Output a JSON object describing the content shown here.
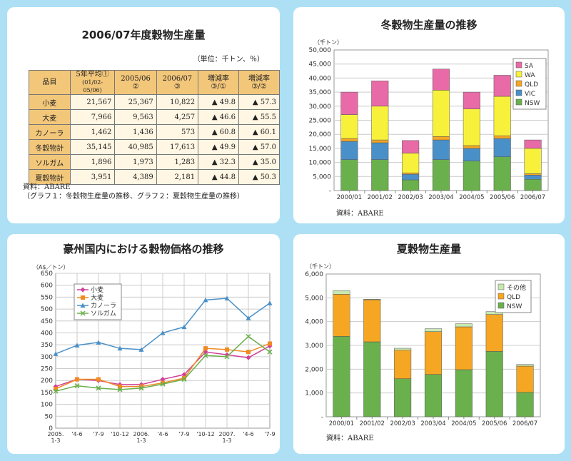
{
  "table_panel": {
    "title": "2006/07年度穀物生産量",
    "unit": "（単位：千トン、％）",
    "headers": [
      {
        "l1": "品目",
        "l2": ""
      },
      {
        "l1": "5年平均①",
        "l2": "(01/02-05/06)"
      },
      {
        "l1": "2005/06",
        "l2": "②"
      },
      {
        "l1": "2006/07",
        "l2": "③"
      },
      {
        "l1": "増減率",
        "l2": "③/①"
      },
      {
        "l1": "増減率",
        "l2": "③/②"
      }
    ],
    "rows": [
      {
        "name": "小麦",
        "avg": "21,567",
        "y0506": "25,367",
        "y0607": "10,822",
        "r1": "▲ 49.8",
        "r2": "▲ 57.3"
      },
      {
        "name": "大麦",
        "avg": "7,966",
        "y0506": "9,563",
        "y0607": "4,257",
        "r1": "▲ 46.6",
        "r2": "▲ 55.5"
      },
      {
        "name": "カノーラ",
        "avg": "1,462",
        "y0506": "1,436",
        "y0607": "573",
        "r1": "▲ 60.8",
        "r2": "▲ 60.1"
      },
      {
        "name": "冬穀物計",
        "avg": "35,145",
        "y0506": "40,985",
        "y0607": "17,613",
        "r1": "▲ 49.9",
        "r2": "▲ 57.0"
      },
      {
        "name": "ソルガム",
        "avg": "1,896",
        "y0506": "1,973",
        "y0607": "1,283",
        "r1": "▲ 32.3",
        "r2": "▲ 35.0"
      },
      {
        "name": "夏穀物計",
        "avg": "3,951",
        "y0506": "4,389",
        "y0607": "2,181",
        "r1": "▲ 44.8",
        "r2": "▲ 50.3"
      }
    ],
    "source": "資料：ABARE",
    "note": "（グラフ１：冬穀物生産量の推移、グラフ２：夏穀物生産量の推移）"
  },
  "chart_data": [
    {
      "type": "bar",
      "stacked": true,
      "title": "冬穀物生産量の推移",
      "ylabel": "（千トン）",
      "ylim": [
        0,
        50000
      ],
      "yticks": [
        "-",
        "5,000",
        "10,000",
        "15,000",
        "20,000",
        "25,000",
        "30,000",
        "35,000",
        "40,000",
        "45,000",
        "50,000"
      ],
      "categories": [
        "2000/01",
        "2001/02",
        "2002/03",
        "2003/04",
        "2004/05",
        "2005/06",
        "2006/07"
      ],
      "series": [
        {
          "name": "NSW",
          "color": "#6ab04c",
          "values": [
            11000,
            11000,
            3800,
            11000,
            10500,
            12000,
            4000
          ]
        },
        {
          "name": "VIC",
          "color": "#4a90c8",
          "values": [
            6500,
            6000,
            2000,
            7000,
            4500,
            6500,
            1500
          ]
        },
        {
          "name": "QLD",
          "color": "#f5a623",
          "values": [
            1000,
            1000,
            500,
            1200,
            1000,
            1000,
            500
          ]
        },
        {
          "name": "WA",
          "color": "#f7f13c",
          "values": [
            8500,
            12000,
            7000,
            16500,
            13000,
            14000,
            9000
          ]
        },
        {
          "name": "SA",
          "color": "#e86aa6",
          "values": [
            8000,
            9000,
            4500,
            7500,
            6000,
            7500,
            3000
          ]
        }
      ],
      "legend_order": [
        "SA",
        "WA",
        "QLD",
        "VIC",
        "NSW"
      ],
      "source": "資料：ABARE"
    },
    {
      "type": "line",
      "title": "豪州国内における穀物価格の推移",
      "ylabel": "（A$／トン）",
      "ylim": [
        0,
        650
      ],
      "yticks": [
        "0",
        "50",
        "100",
        "150",
        "200",
        "250",
        "300",
        "350",
        "400",
        "450",
        "500",
        "550",
        "600",
        "650"
      ],
      "x_labels": [
        {
          "l1": "2005.",
          "l2": "1-3"
        },
        {
          "l1": "'4-6",
          "l2": ""
        },
        {
          "l1": "'7-9",
          "l2": ""
        },
        {
          "l1": "'10-12",
          "l2": ""
        },
        {
          "l1": "2006.",
          "l2": "1-3"
        },
        {
          "l1": "'4-6",
          "l2": ""
        },
        {
          "l1": "'7-9",
          "l2": ""
        },
        {
          "l1": "'10-12",
          "l2": ""
        },
        {
          "l1": "2007.",
          "l2": "1-3"
        },
        {
          "l1": "'4-6",
          "l2": ""
        },
        {
          "l1": "'7-9",
          "l2": ""
        }
      ],
      "series": [
        {
          "name": "小麦",
          "color": "#d0409a",
          "marker": "diamond",
          "values": [
            175,
            205,
            200,
            183,
            183,
            205,
            225,
            320,
            308,
            296,
            345
          ]
        },
        {
          "name": "大麦",
          "color": "#f08a24",
          "marker": "square",
          "values": [
            165,
            205,
            205,
            175,
            175,
            190,
            210,
            335,
            330,
            320,
            355
          ]
        },
        {
          "name": "カノーラ",
          "color": "#4a90c8",
          "marker": "triangle",
          "values": [
            312,
            348,
            360,
            335,
            330,
            400,
            425,
            538,
            545,
            462,
            525
          ]
        },
        {
          "name": "ソルガム",
          "color": "#6ab04c",
          "marker": "x",
          "values": [
            155,
            178,
            168,
            162,
            168,
            185,
            205,
            305,
            300,
            385,
            320
          ]
        }
      ]
    },
    {
      "type": "bar",
      "stacked": true,
      "title": "夏穀物生産量",
      "ylabel": "（千トン）",
      "ylim": [
        0,
        6000
      ],
      "yticks": [
        "-",
        "1,000",
        "2,000",
        "3,000",
        "4,000",
        "5,000",
        "6,000"
      ],
      "categories": [
        "2000/01",
        "2001/02",
        "2002/03",
        "2003/04",
        "2004/05",
        "2005/06",
        "2006/07"
      ],
      "series": [
        {
          "name": "NSW",
          "color": "#6ab04c",
          "values": [
            3380,
            3150,
            1600,
            1780,
            1980,
            2750,
            1030
          ]
        },
        {
          "name": "QLD",
          "color": "#f5a623",
          "values": [
            1770,
            1770,
            1200,
            1800,
            1800,
            1550,
            1100
          ]
        },
        {
          "name": "その他",
          "color": "#c8e8b0",
          "values": [
            150,
            20,
            80,
            120,
            130,
            120,
            70
          ]
        }
      ],
      "legend_order": [
        "その他",
        "QLD",
        "NSW"
      ],
      "source": "資料：ABARE"
    }
  ]
}
